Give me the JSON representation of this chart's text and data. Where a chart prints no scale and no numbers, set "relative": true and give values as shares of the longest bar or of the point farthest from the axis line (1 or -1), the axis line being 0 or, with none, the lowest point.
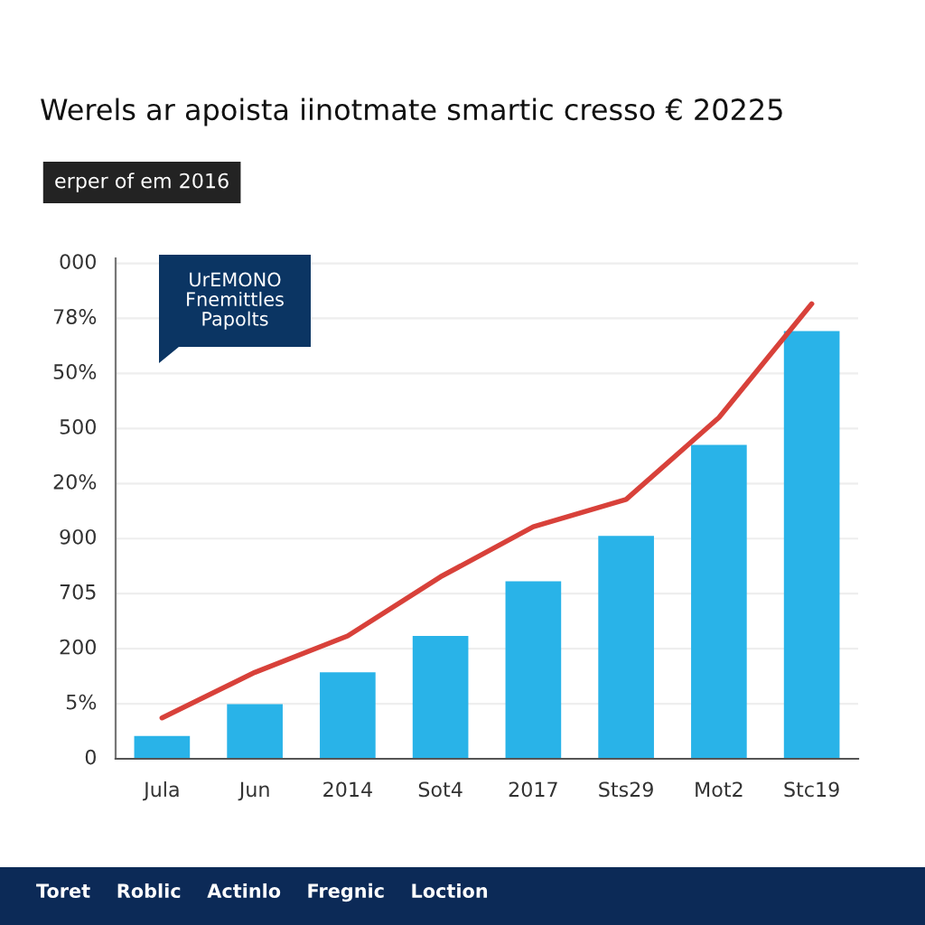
{
  "chart_data": {
    "type": "bar",
    "title": "Werels ar apoista iinotmate smartic cresso € 20225",
    "subtitle": "erper of em 2016",
    "categories": [
      "Jula",
      "Jun",
      "2014",
      "Sot4",
      "2017",
      "Sts29",
      "Mot2",
      "Stc19"
    ],
    "relative": true,
    "series": [
      {
        "color": "#29b3e8",
        "values": [
          0.05,
          0.12,
          0.19,
          0.27,
          0.39,
          0.49,
          0.69,
          0.94
        ]
      },
      {
        "type": "line",
        "color": "#d8413a",
        "values": [
          0.09,
          0.19,
          0.27,
          0.4,
          0.51,
          0.57,
          0.75,
          1.0
        ]
      }
    ],
    "grid": "y",
    "annotations": [
      "UrEMONO\nFnemittles\nPapolts",
      "Toret Roblic Actinlo Fregnic Loction",
      "000",
      "78%",
      "50%",
      "500",
      "20%",
      "900",
      "705",
      "200",
      "5%",
      "0"
    ]
  }
}
